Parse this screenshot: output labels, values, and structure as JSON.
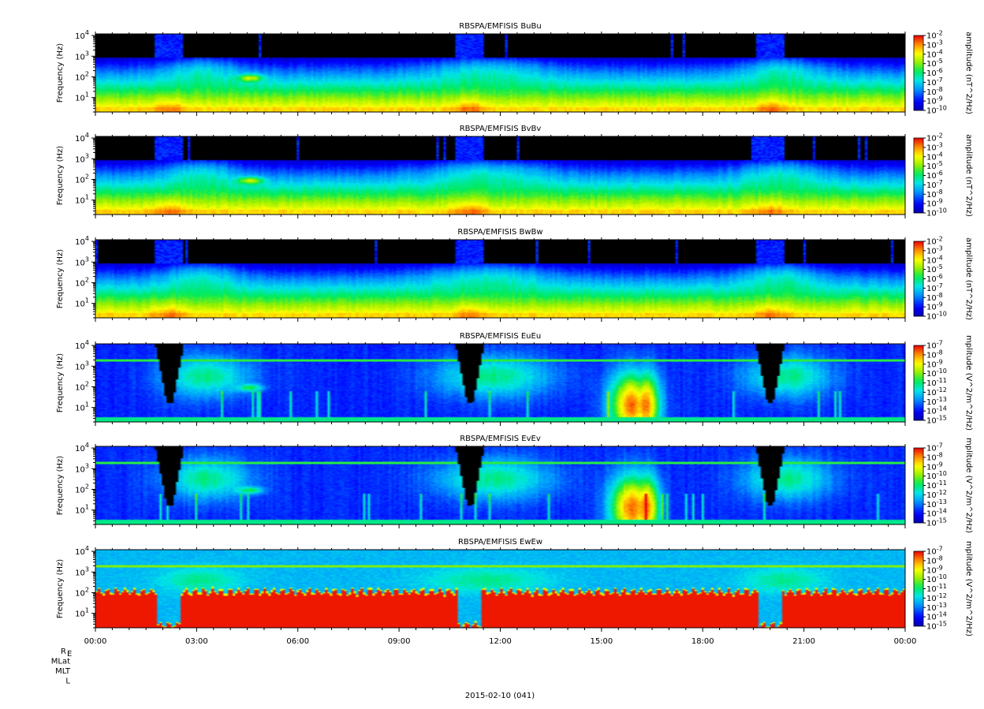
{
  "chart_data": {
    "type": "heatmap",
    "date_label": "2015-02-10 (041)",
    "x_tick_labels": [
      "00:00",
      "03:00",
      "06:00",
      "09:00",
      "12:00",
      "15:00",
      "18:00",
      "21:00",
      "00:00"
    ],
    "x_range_hours": [
      0,
      24
    ],
    "ephemeris_labels": [
      "R",
      "MLat",
      "MLT",
      "L"
    ],
    "ephemeris_subscript": "E",
    "panels": [
      {
        "title": "RBSPA/EMFISIS  BuBu",
        "kind": "B",
        "ylabel": "Frequency (Hz)",
        "yscale": "log",
        "ylim": [
          2,
          12000
        ],
        "ytick_exponents": [
          1,
          2,
          3,
          4
        ],
        "colorbar_title": "amplitude (nT^2/Hz)",
        "colorbar_exponents": [
          -2,
          -3,
          -4,
          -5,
          -6,
          -7,
          -8,
          -9,
          -10
        ],
        "colorbar_range": [
          -10,
          -2
        ]
      },
      {
        "title": "RBSPA/EMFISIS  BvBv",
        "kind": "B",
        "ylabel": "Frequency (Hz)",
        "yscale": "log",
        "ylim": [
          2,
          12000
        ],
        "ytick_exponents": [
          1,
          2,
          3,
          4
        ],
        "colorbar_title": "amplitude (nT^2/Hz)",
        "colorbar_exponents": [
          -2,
          -3,
          -4,
          -5,
          -6,
          -7,
          -8,
          -9,
          -10
        ],
        "colorbar_range": [
          -10,
          -2
        ]
      },
      {
        "title": "RBSPA/EMFISIS  BwBw",
        "kind": "Bw",
        "ylabel": "Frequency (Hz)",
        "yscale": "log",
        "ylim": [
          2,
          12000
        ],
        "ytick_exponents": [
          1,
          2,
          3,
          4
        ],
        "colorbar_title": "amplitude (nT^2/Hz)",
        "colorbar_exponents": [
          -2,
          -3,
          -4,
          -5,
          -6,
          -7,
          -8,
          -9,
          -10
        ],
        "colorbar_range": [
          -10,
          -2
        ]
      },
      {
        "title": "RBSPA/EMFISIS  EuEu",
        "kind": "E",
        "ylabel": "Frequency (Hz)",
        "yscale": "log",
        "ylim": [
          2,
          12000
        ],
        "ytick_exponents": [
          1,
          2,
          3,
          4
        ],
        "colorbar_title": "mplitude (V^2/m^2/Hz)",
        "colorbar_exponents": [
          -7,
          -8,
          -9,
          -10,
          -11,
          -12,
          -13,
          -14,
          -15
        ],
        "colorbar_range": [
          -15,
          -7
        ]
      },
      {
        "title": "RBSPA/EMFISIS  EvEv",
        "kind": "E",
        "ylabel": "Frequency (Hz)",
        "yscale": "log",
        "ylim": [
          2,
          12000
        ],
        "ytick_exponents": [
          1,
          2,
          3,
          4
        ],
        "colorbar_title": "mplitude (V^2/m^2/Hz)",
        "colorbar_exponents": [
          -7,
          -8,
          -9,
          -10,
          -11,
          -12,
          -13,
          -14,
          -15
        ],
        "colorbar_range": [
          -15,
          -7
        ]
      },
      {
        "title": "RBSPA/EMFISIS  EwEw",
        "kind": "Ew",
        "ylabel": "Frequency (Hz)",
        "yscale": "log",
        "ylim": [
          2,
          12000
        ],
        "ytick_exponents": [
          1,
          2,
          3,
          4
        ],
        "colorbar_title": "mplitude (V^2/m^2/Hz)",
        "colorbar_exponents": [
          -7,
          -8,
          -9,
          -10,
          -11,
          -12,
          -13,
          -14,
          -15
        ],
        "colorbar_range": [
          -15,
          -7
        ]
      }
    ]
  }
}
